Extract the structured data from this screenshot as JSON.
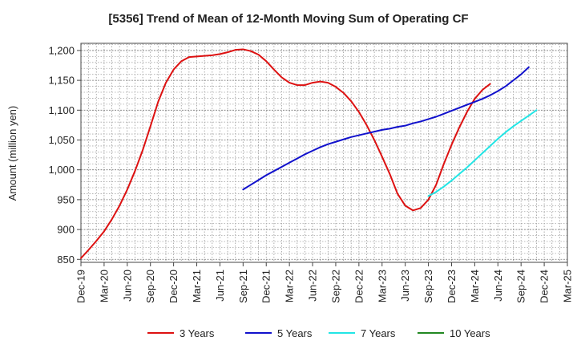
{
  "chart_data": {
    "type": "line",
    "title": "[5356]  Trend of Mean of 12-Month Moving Sum of Operating CF",
    "xlabel": "",
    "ylabel": "Amount (million yen)",
    "ylim": [
      845,
      1212
    ],
    "yticks": [
      850,
      900,
      950,
      1000,
      1050,
      1100,
      1150,
      1200
    ],
    "ytick_labels": [
      "850",
      "900",
      "950",
      "1,000",
      "1,050",
      "1,100",
      "1,150",
      "1,200"
    ],
    "x_start": "Dec-19",
    "x_count_months": 63,
    "xticks": [
      "Dec-19",
      "Mar-20",
      "Jun-20",
      "Sep-20",
      "Dec-20",
      "Mar-21",
      "Jun-21",
      "Sep-21",
      "Dec-21",
      "Mar-22",
      "Jun-22",
      "Sep-22",
      "Dec-22",
      "Mar-23",
      "Jun-23",
      "Sep-23",
      "Dec-23",
      "Mar-24",
      "Jun-24",
      "Sep-24",
      "Dec-24",
      "Mar-25"
    ],
    "grid": true,
    "legend_position": "bottom",
    "series": [
      {
        "name": "3 Years",
        "color": "#dd1111",
        "start_index": 0,
        "values": [
          852,
          866,
          881,
          897,
          917,
          940,
          967,
          998,
          1033,
          1073,
          1114,
          1146,
          1168,
          1182,
          1189,
          1190,
          1191,
          1192,
          1194,
          1197,
          1201,
          1202,
          1199,
          1193,
          1182,
          1168,
          1155,
          1146,
          1142,
          1142,
          1146,
          1148,
          1146,
          1139,
          1129,
          1115,
          1097,
          1075,
          1050,
          1022,
          993,
          960,
          940,
          932,
          936,
          950,
          975,
          1010,
          1042,
          1071,
          1097,
          1119,
          1134,
          1144
        ]
      },
      {
        "name": "5 Years",
        "color": "#1111cc",
        "start_index": 21,
        "values": [
          967,
          975,
          983,
          991,
          998,
          1005,
          1012,
          1019,
          1026,
          1032,
          1038,
          1043,
          1047,
          1051,
          1055,
          1058,
          1061,
          1064,
          1067,
          1069,
          1072,
          1074,
          1078,
          1081,
          1085,
          1089,
          1094,
          1099,
          1104,
          1109,
          1114,
          1119,
          1125,
          1132,
          1140,
          1150,
          1160,
          1172
        ]
      },
      {
        "name": "7 Years",
        "color": "#22e5e5",
        "start_index": 45,
        "values": [
          956,
          963,
          972,
          982,
          993,
          1004,
          1016,
          1028,
          1040,
          1052,
          1063,
          1073,
          1082,
          1091,
          1100
        ]
      },
      {
        "name": "10 Years",
        "color": "#228822",
        "start_index": 0,
        "values": []
      }
    ]
  }
}
